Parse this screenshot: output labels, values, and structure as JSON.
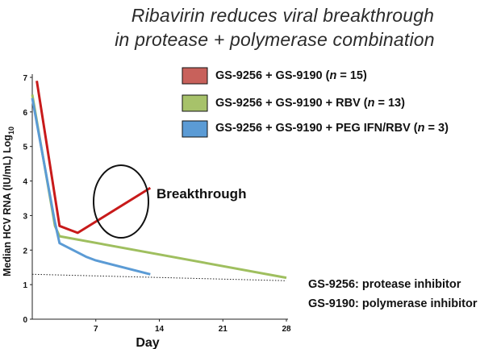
{
  "title": {
    "line1": "Ribavirin reduces viral breakthrough",
    "line2": "in protease + polymerase combination"
  },
  "legend": [
    {
      "prefix": "GS-9256 + GS-9190 (",
      "n_label": "n",
      "suffix": " = 15)",
      "color": "#c8615b"
    },
    {
      "prefix": "GS-9256 + GS-9190 + RBV (",
      "n_label": "n",
      "suffix": " = 13)",
      "color": "#a7c26a"
    },
    {
      "prefix": "GS-9256 + GS-9190 + PEG IFN/RBV (",
      "n_label": "n",
      "suffix": " = 3)",
      "color": "#5b9bd5"
    }
  ],
  "notes": {
    "protease": "GS-9256: protease inhibitor",
    "polymerase": "GS-9190: polymerase inhibitor"
  },
  "annotation": "Breakthrough",
  "chart_data": {
    "type": "line",
    "title": "Ribavirin reduces viral breakthrough in protease + polymerase combination",
    "xlabel": "Day",
    "ylabel_main": "Median HCV RNA (IU/mL) Log",
    "ylabel_sub": "10",
    "xlim": [
      0,
      28
    ],
    "ylim": [
      0,
      7
    ],
    "xticks": [
      7,
      14,
      21,
      28
    ],
    "yticks": [
      0,
      1,
      2,
      3,
      4,
      5,
      6,
      7
    ],
    "xtick_labels": [
      "7",
      "14",
      "21",
      "28"
    ],
    "ytick_labels": [
      "0",
      "1",
      "2",
      "3",
      "4",
      "5",
      "6",
      "7"
    ],
    "grid": false,
    "reference_line_y": 1.3,
    "series": [
      {
        "name": "GS-9256 + GS-9190",
        "color": "#c81a1a",
        "x": [
          0.5,
          3,
          4,
          5,
          13
        ],
        "y": [
          6.9,
          2.7,
          2.6,
          2.5,
          3.8
        ]
      },
      {
        "name": "GS-9256 + GS-9190 + RBV",
        "color": "#9fbf5f",
        "x": [
          0,
          2.5,
          3,
          28
        ],
        "y": [
          6.5,
          2.7,
          2.4,
          1.2
        ]
      },
      {
        "name": "GS-9256 + GS-9190 + PEG IFN/RBV",
        "color": "#5b9bd5",
        "x": [
          0,
          2.5,
          3,
          6,
          7,
          13
        ],
        "y": [
          6.4,
          2.8,
          2.2,
          1.8,
          1.7,
          1.3
        ]
      }
    ]
  }
}
